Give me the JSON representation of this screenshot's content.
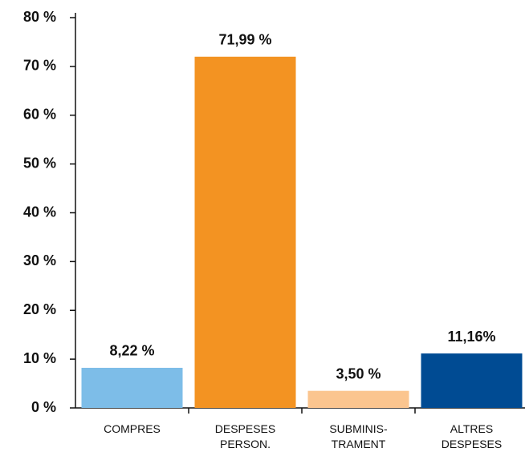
{
  "chart_data": {
    "type": "bar",
    "categories": [
      "COMPRES",
      "DESPESES\nPERSON.",
      "SUBMINIS-\nTRAMENT",
      "ALTRES\nDESPESES"
    ],
    "values": [
      8.22,
      71.99,
      3.5,
      11.16
    ],
    "value_labels": [
      "8,22 %",
      "71,99 %",
      "3,50 %",
      "11,16%"
    ],
    "colors": [
      "#7dbde8",
      "#f39322",
      "#fbc58f",
      "#004b93"
    ],
    "ylim": [
      0,
      80
    ],
    "yticks": [
      {
        "value": 0,
        "label": "0 %"
      },
      {
        "value": 10,
        "label": "10 %"
      },
      {
        "value": 20,
        "label": "20 %"
      },
      {
        "value": 30,
        "label": "30 %"
      },
      {
        "value": 40,
        "label": "40 %"
      },
      {
        "value": 50,
        "label": "50 %"
      },
      {
        "value": 60,
        "label": "60 %"
      },
      {
        "value": 70,
        "label": "70 %"
      },
      {
        "value": 80,
        "label": "80 %"
      }
    ],
    "grid": false
  }
}
